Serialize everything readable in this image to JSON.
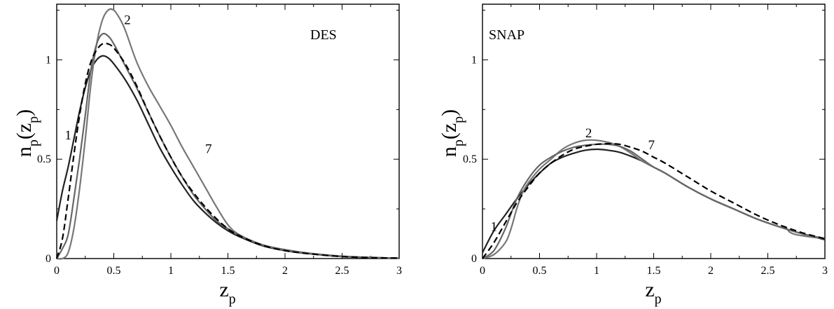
{
  "chart_data": [
    {
      "type": "line",
      "panel_label": "DES",
      "xlabel": "z",
      "xlabel_sub": "p",
      "ylabel_base": "n",
      "ylabel_sub": "p",
      "ylabel_arg": "z",
      "ylabel_arg_sub": "p",
      "xlim": [
        0,
        3
      ],
      "ylim": [
        0,
        1.28
      ],
      "xticks": [
        0,
        0.5,
        1,
        1.5,
        2,
        2.5,
        3
      ],
      "xtick_labels": [
        "0",
        "0.5",
        "1",
        "1.5",
        "2",
        "2.5",
        "3"
      ],
      "yticks": [
        0,
        0.5,
        1
      ],
      "ytick_labels": [
        "0",
        "0.5",
        "1"
      ],
      "grid": false,
      "annotations": [
        {
          "text": "1",
          "x": 0.1,
          "y": 0.6
        },
        {
          "text": "2",
          "x": 0.62,
          "y": 1.18
        },
        {
          "text": "7",
          "x": 1.33,
          "y": 0.53
        }
      ],
      "series": [
        {
          "color": "#222222",
          "dash": false,
          "x": [
            0,
            0.05,
            0.1,
            0.15,
            0.2,
            0.25,
            0.3,
            0.35,
            0.4,
            0.45,
            0.5,
            0.6,
            0.7,
            0.8,
            0.9,
            1.0,
            1.1,
            1.2,
            1.3,
            1.4,
            1.5,
            1.6,
            1.8,
            2.0,
            2.2,
            2.5,
            2.8,
            3.0
          ],
          "y": [
            0.19,
            0.34,
            0.46,
            0.6,
            0.74,
            0.86,
            0.95,
            1.0,
            1.02,
            1.01,
            0.98,
            0.9,
            0.8,
            0.68,
            0.56,
            0.46,
            0.37,
            0.29,
            0.23,
            0.18,
            0.14,
            0.11,
            0.065,
            0.04,
            0.025,
            0.01,
            0.004,
            0.002
          ]
        },
        {
          "color": "#777777",
          "dash": false,
          "x": [
            0,
            0.05,
            0.1,
            0.15,
            0.2,
            0.25,
            0.3,
            0.35,
            0.4,
            0.45,
            0.5,
            0.55,
            0.6,
            0.7,
            0.8,
            0.9,
            1.0,
            1.1,
            1.2,
            1.3,
            1.4,
            1.5,
            1.6,
            1.8,
            2.0,
            2.2,
            2.5,
            2.8,
            3.0
          ],
          "y": [
            0.0,
            0.0,
            0.03,
            0.15,
            0.35,
            0.6,
            0.88,
            1.08,
            1.2,
            1.25,
            1.25,
            1.21,
            1.15,
            0.99,
            0.87,
            0.77,
            0.67,
            0.56,
            0.46,
            0.36,
            0.26,
            0.17,
            0.12,
            0.07,
            0.045,
            0.028,
            0.012,
            0.005,
            0.002
          ]
        },
        {
          "color": "#666666",
          "dash": false,
          "x": [
            0,
            0.05,
            0.1,
            0.15,
            0.2,
            0.25,
            0.3,
            0.35,
            0.4,
            0.45,
            0.5,
            0.6,
            0.7,
            0.8,
            0.9,
            1.0,
            1.1,
            1.2,
            1.3,
            1.4,
            1.5,
            1.6,
            1.8,
            2.0,
            2.2,
            2.5,
            2.8,
            3.0
          ],
          "y": [
            0.0,
            0.05,
            0.12,
            0.3,
            0.5,
            0.72,
            0.95,
            1.08,
            1.13,
            1.12,
            1.08,
            0.97,
            0.86,
            0.74,
            0.62,
            0.51,
            0.41,
            0.32,
            0.25,
            0.19,
            0.15,
            0.115,
            0.068,
            0.042,
            0.026,
            0.011,
            0.004,
            0.002
          ]
        },
        {
          "color": "#000000",
          "dash": true,
          "x": [
            0,
            0.05,
            0.1,
            0.15,
            0.2,
            0.25,
            0.3,
            0.35,
            0.4,
            0.45,
            0.5,
            0.6,
            0.7,
            0.8,
            0.9,
            1.0,
            1.1,
            1.2,
            1.3,
            1.4,
            1.5,
            1.6,
            1.8,
            2.0,
            2.2,
            2.5,
            2.8,
            3.0
          ],
          "y": [
            0.0,
            0.1,
            0.3,
            0.52,
            0.72,
            0.88,
            0.99,
            1.05,
            1.08,
            1.08,
            1.06,
            0.98,
            0.87,
            0.74,
            0.62,
            0.51,
            0.41,
            0.33,
            0.26,
            0.2,
            0.15,
            0.115,
            0.067,
            0.04,
            0.025,
            0.01,
            0.004,
            0.002
          ]
        }
      ]
    },
    {
      "type": "line",
      "panel_label": "SNAP",
      "xlabel": "z",
      "xlabel_sub": "p",
      "ylabel_base": "n",
      "ylabel_sub": "p",
      "ylabel_arg": "z",
      "ylabel_arg_sub": "p",
      "xlim": [
        0,
        3
      ],
      "ylim": [
        0,
        1.28
      ],
      "xticks": [
        0,
        0.5,
        1,
        1.5,
        2,
        2.5,
        3
      ],
      "xtick_labels": [
        "0",
        "0.5",
        "1",
        "1.5",
        "2",
        "2.5",
        "3"
      ],
      "yticks": [
        0,
        0.5,
        1
      ],
      "ytick_labels": [
        "0",
        "0.5",
        "1"
      ],
      "grid": false,
      "annotations": [
        {
          "text": "1",
          "x": 0.1,
          "y": 0.14
        },
        {
          "text": "2",
          "x": 0.93,
          "y": 0.61
        },
        {
          "text": "7",
          "x": 1.48,
          "y": 0.55
        }
      ],
      "series": [
        {
          "color": "#222222",
          "dash": false,
          "x": [
            0,
            0.1,
            0.2,
            0.3,
            0.4,
            0.5,
            0.6,
            0.7,
            0.8,
            0.9,
            1.0,
            1.1,
            1.2,
            1.3,
            1.4,
            1.5,
            1.6,
            1.8,
            2.0,
            2.2,
            2.4,
            2.6,
            2.8,
            3.0
          ],
          "y": [
            0.03,
            0.14,
            0.22,
            0.3,
            0.37,
            0.43,
            0.48,
            0.51,
            0.53,
            0.545,
            0.55,
            0.545,
            0.535,
            0.515,
            0.49,
            0.46,
            0.43,
            0.36,
            0.3,
            0.25,
            0.2,
            0.16,
            0.125,
            0.095
          ]
        },
        {
          "color": "#777777",
          "dash": false,
          "x": [
            0,
            0.1,
            0.2,
            0.25,
            0.3,
            0.35,
            0.4,
            0.5,
            0.6,
            0.7,
            0.8,
            0.9,
            1.0,
            1.1,
            1.2,
            1.3,
            1.4,
            1.5,
            1.6,
            1.8,
            2.0,
            2.2,
            2.4,
            2.6,
            2.65,
            2.7,
            2.8,
            3.0
          ],
          "y": [
            0.0,
            0.02,
            0.08,
            0.15,
            0.25,
            0.33,
            0.38,
            0.45,
            0.5,
            0.55,
            0.58,
            0.595,
            0.595,
            0.585,
            0.565,
            0.53,
            0.49,
            0.46,
            0.43,
            0.36,
            0.3,
            0.25,
            0.2,
            0.16,
            0.16,
            0.13,
            0.115,
            0.1
          ]
        },
        {
          "color": "#666666",
          "dash": false,
          "x": [
            0,
            0.1,
            0.2,
            0.3,
            0.4,
            0.5,
            0.6,
            0.7,
            0.8,
            0.9,
            1.0,
            1.1,
            1.2,
            1.3,
            1.4,
            1.5,
            1.6,
            1.8,
            2.0,
            2.2,
            2.4,
            2.6,
            2.8,
            3.0
          ],
          "y": [
            0.0,
            0.04,
            0.15,
            0.3,
            0.4,
            0.47,
            0.51,
            0.54,
            0.56,
            0.57,
            0.575,
            0.575,
            0.565,
            0.54,
            0.5,
            0.46,
            0.43,
            0.36,
            0.3,
            0.25,
            0.2,
            0.16,
            0.125,
            0.1
          ]
        },
        {
          "color": "#000000",
          "dash": true,
          "x": [
            0,
            0.1,
            0.2,
            0.3,
            0.4,
            0.5,
            0.6,
            0.7,
            0.8,
            0.9,
            1.0,
            1.1,
            1.2,
            1.3,
            1.4,
            1.5,
            1.6,
            1.8,
            2.0,
            2.2,
            2.4,
            2.6,
            2.8,
            3.0
          ],
          "y": [
            0.0,
            0.08,
            0.18,
            0.28,
            0.36,
            0.43,
            0.48,
            0.52,
            0.55,
            0.565,
            0.575,
            0.578,
            0.575,
            0.56,
            0.54,
            0.51,
            0.48,
            0.41,
            0.34,
            0.28,
            0.22,
            0.17,
            0.13,
            0.1
          ]
        }
      ]
    }
  ]
}
